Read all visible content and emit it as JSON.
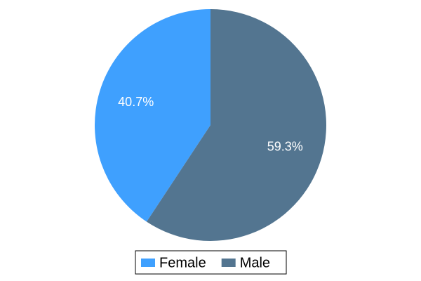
{
  "chart_data": {
    "type": "pie",
    "categories": [
      "Female",
      "Male"
    ],
    "values": [
      40.7,
      59.3
    ],
    "value_labels": [
      "40.7%",
      "59.3%"
    ],
    "colors": [
      "#3fa0fe",
      "#537590"
    ]
  }
}
